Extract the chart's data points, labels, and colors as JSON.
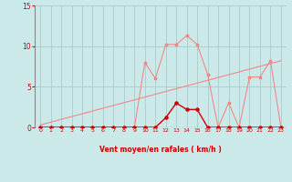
{
  "xlabel": "Vent moyen/en rafales ( km/h )",
  "xlim": [
    -0.5,
    23.5
  ],
  "ylim": [
    0,
    15
  ],
  "yticks": [
    0,
    5,
    10,
    15
  ],
  "xticks": [
    0,
    1,
    2,
    3,
    4,
    5,
    6,
    7,
    8,
    9,
    10,
    11,
    12,
    13,
    14,
    15,
    16,
    17,
    18,
    19,
    20,
    21,
    22,
    23
  ],
  "background_color": "#cce9e9",
  "grid_color": "#aacccc",
  "line_pink_x": [
    0,
    1,
    2,
    3,
    4,
    5,
    6,
    7,
    8,
    9,
    10,
    11,
    12,
    13,
    14,
    15,
    16,
    17,
    18,
    19,
    20,
    21,
    22,
    23
  ],
  "line_pink_y": [
    0,
    0,
    0,
    0,
    0,
    0,
    0,
    0,
    0,
    0,
    8,
    6,
    10.2,
    10.2,
    11.3,
    10.2,
    6.5,
    0,
    3,
    0,
    6.2,
    6.2,
    8.2,
    0
  ],
  "line_red_x": [
    0,
    1,
    2,
    3,
    4,
    5,
    6,
    7,
    8,
    9,
    10,
    11,
    12,
    13,
    14,
    15,
    16,
    17,
    18,
    19,
    20,
    21,
    22,
    23
  ],
  "line_red_y": [
    0,
    0,
    0,
    0,
    0,
    0,
    0,
    0,
    0,
    0,
    0,
    0,
    1.2,
    3,
    2.2,
    2.2,
    0,
    0,
    0,
    0,
    0,
    0,
    0,
    0
  ],
  "trend_x": [
    0,
    23
  ],
  "trend_y": [
    0.3,
    8.2
  ],
  "pink_color": "#f08888",
  "red_color": "#cc0000",
  "trend_color": "#f08888",
  "tick_color": "#cc0000",
  "xlabel_color": "#cc0000",
  "arrows": [
    "↙",
    "↙",
    "↙",
    "↙",
    "↙",
    "↙",
    "↙",
    "↙",
    "↙",
    "↙",
    "↙",
    "↙",
    "↘",
    "↘",
    "→",
    "→",
    "→",
    "→",
    "→",
    "→",
    "→",
    "↑",
    "↑",
    "↑"
  ]
}
